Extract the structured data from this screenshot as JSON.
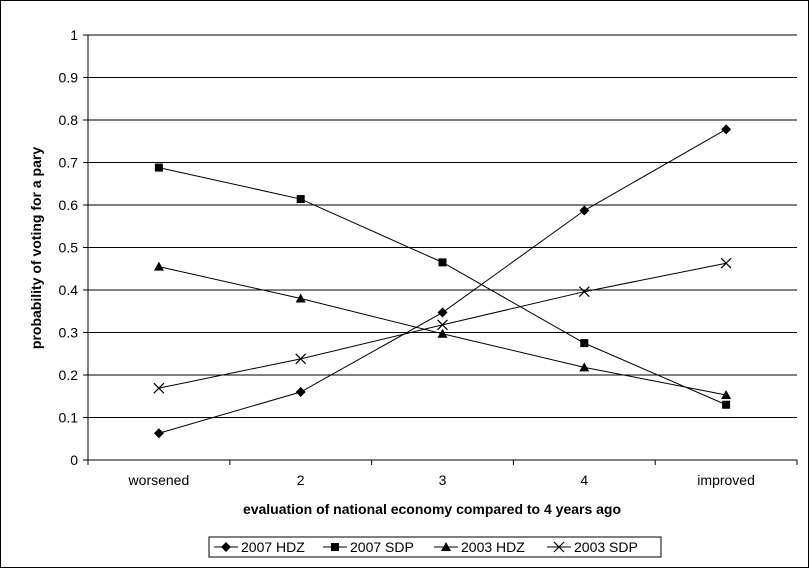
{
  "chart_data": {
    "type": "line",
    "categories": [
      "worsened",
      "2",
      "3",
      "4",
      "improved"
    ],
    "xlabel": "evaluation of national economy compared to 4 years ago",
    "ylabel": "probability of voting for a pary",
    "ylim": [
      0,
      1
    ],
    "yticks": [
      "0",
      "0.1",
      "0.2",
      "0.3",
      "0.4",
      "0.5",
      "0.6",
      "0.7",
      "0.8",
      "0.9",
      "1"
    ],
    "grid": "horizontal",
    "legend_position": "bottom",
    "series": [
      {
        "name": "2007 HDZ",
        "marker": "diamond",
        "values": [
          0.063,
          0.16,
          0.347,
          0.587,
          0.778
        ]
      },
      {
        "name": "2007 SDP",
        "marker": "square",
        "values": [
          0.688,
          0.614,
          0.465,
          0.275,
          0.13
        ]
      },
      {
        "name": "2003 HDZ",
        "marker": "triangle",
        "values": [
          0.455,
          0.38,
          0.297,
          0.218,
          0.153
        ]
      },
      {
        "name": "2003 SDP",
        "marker": "x",
        "values": [
          0.169,
          0.238,
          0.318,
          0.396,
          0.463
        ]
      }
    ],
    "colors": {
      "line": "#000000",
      "grid": "#000000",
      "background": "#ffffff"
    }
  }
}
